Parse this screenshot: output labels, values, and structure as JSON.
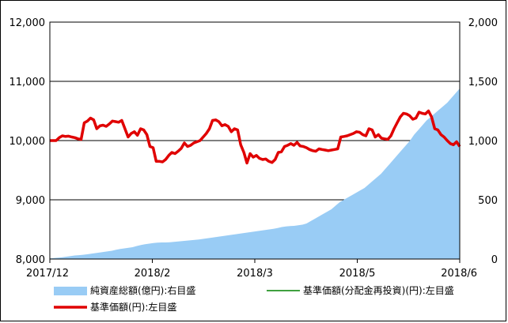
{
  "chart_data": {
    "type": "line+area",
    "x_tick_labels": [
      "2017/12",
      "2018/2",
      "2018/3",
      "2018/5",
      "2018/6"
    ],
    "left_axis": {
      "ylim": [
        8000,
        12000
      ],
      "tick_labels": [
        "8,000",
        "9,000",
        "10,000",
        "11,000",
        "12,000"
      ],
      "tick_values": [
        8000,
        9000,
        10000,
        11000,
        12000
      ]
    },
    "right_axis": {
      "ylim": [
        0,
        2000
      ],
      "tick_labels": [
        "0",
        "500",
        "1,000",
        "1,500",
        "2,000"
      ],
      "tick_values": [
        0,
        500,
        1000,
        1500,
        2000
      ]
    },
    "grid": true,
    "series": [
      {
        "name": "純資産総額(億円):右目盛",
        "type": "area",
        "axis": "right",
        "color": "#99ccf5",
        "values": [
          5,
          8,
          12,
          15,
          20,
          25,
          30,
          33,
          36,
          40,
          45,
          50,
          55,
          60,
          65,
          70,
          78,
          85,
          90,
          95,
          100,
          110,
          118,
          125,
          130,
          135,
          138,
          140,
          140,
          142,
          145,
          148,
          152,
          155,
          158,
          162,
          165,
          170,
          175,
          180,
          185,
          190,
          195,
          200,
          205,
          210,
          215,
          220,
          225,
          230,
          235,
          240,
          245,
          250,
          255,
          262,
          270,
          275,
          278,
          280,
          285,
          290,
          300,
          320,
          340,
          360,
          380,
          400,
          420,
          450,
          480,
          500,
          520,
          540,
          560,
          580,
          600,
          630,
          660,
          690,
          720,
          760,
          800,
          840,
          880,
          920,
          960,
          1000,
          1050,
          1090,
          1130,
          1170,
          1200,
          1230,
          1260,
          1290,
          1320,
          1360,
          1400,
          1440
        ]
      },
      {
        "name": "基準価額(円):左目盛",
        "type": "line",
        "axis": "left",
        "color": "#e00000",
        "values": [
          10000,
          10000,
          10000,
          10050,
          10080,
          10070,
          10075,
          10060,
          10050,
          10030,
          10020,
          10300,
          10330,
          10380,
          10350,
          10200,
          10250,
          10260,
          10240,
          10280,
          10330,
          10320,
          10310,
          10340,
          10200,
          10060,
          10120,
          10150,
          10090,
          10200,
          10180,
          10100,
          9900,
          9880,
          9650,
          9650,
          9640,
          9680,
          9750,
          9800,
          9780,
          9820,
          9870,
          9960,
          9900,
          9920,
          9960,
          9980,
          10000,
          10060,
          10120,
          10200,
          10340,
          10350,
          10320,
          10250,
          10270,
          10240,
          10150,
          10200,
          10180,
          9930,
          9800,
          9620,
          9780,
          9720,
          9750,
          9700,
          9680,
          9690,
          9650,
          9630,
          9680,
          9800,
          9810,
          9900,
          9920,
          9950,
          9920,
          9970,
          9910,
          9900,
          9880,
          9850,
          9830,
          9820,
          9860,
          9850,
          9840,
          9830,
          9840,
          9850,
          9860,
          10060,
          10070,
          10080,
          10100,
          10120,
          10150,
          10140,
          10100,
          10080,
          10200,
          10180,
          10060,
          10100,
          10040,
          10030,
          10020,
          10080,
          10200,
          10300,
          10400,
          10460,
          10450,
          10420,
          10360,
          10380,
          10480,
          10460,
          10450,
          10500,
          10400,
          10200,
          10180,
          10100,
          10060,
          10000,
          9950,
          9930,
          9980,
          9900
        ]
      },
      {
        "name": "基準価額(分配金再投資)(円):左目盛",
        "type": "line",
        "axis": "left",
        "color": "#008000",
        "values": []
      }
    ]
  },
  "legend": {
    "items": [
      {
        "label": "純資産総額(億円):右目盛",
        "kind": "area",
        "color": "#99ccf5"
      },
      {
        "label": "基準価額(分配金再投資)(円):左目盛",
        "kind": "line",
        "color": "#008000"
      },
      {
        "label": "基準価額(円):左目盛",
        "kind": "line",
        "color": "#e00000"
      }
    ]
  }
}
